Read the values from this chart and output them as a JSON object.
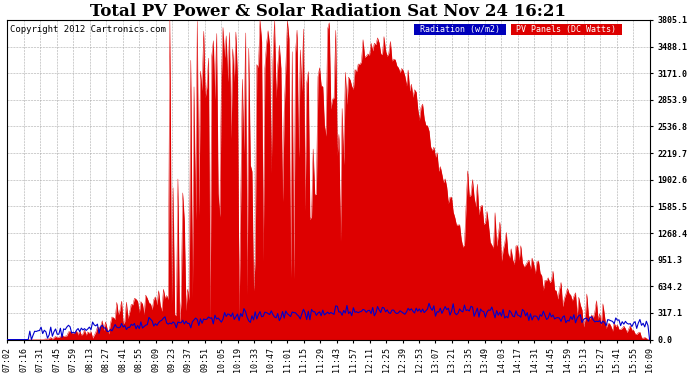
{
  "title": "Total PV Power & Solar Radiation Sat Nov 24 16:21",
  "copyright": "Copyright 2012 Cartronics.com",
  "yticks": [
    0.0,
    317.1,
    634.2,
    951.3,
    1268.4,
    1585.5,
    1902.6,
    2219.7,
    2536.8,
    2853.9,
    3171.0,
    3488.1,
    3805.1
  ],
  "ymax": 3805.1,
  "ymin": 0.0,
  "legend_radiation_label": "Radiation (w/m2)",
  "legend_pv_label": "PV Panels (DC Watts)",
  "legend_radiation_color": "#0000bb",
  "legend_pv_color": "#dd0000",
  "bg_color": "#ffffff",
  "grid_color_x": "#aaaaaa",
  "grid_color_y": "#aaaaaa",
  "title_fontsize": 12,
  "tick_fontsize": 6,
  "copyright_fontsize": 6.5,
  "x_tick_labels": [
    "07:02",
    "07:16",
    "07:31",
    "07:45",
    "07:59",
    "08:13",
    "08:27",
    "08:41",
    "08:55",
    "09:09",
    "09:23",
    "09:37",
    "09:51",
    "10:05",
    "10:19",
    "10:33",
    "10:47",
    "11:01",
    "11:15",
    "11:29",
    "11:43",
    "11:57",
    "12:11",
    "12:25",
    "12:39",
    "12:53",
    "13:07",
    "13:21",
    "13:35",
    "13:49",
    "14:03",
    "14:17",
    "14:31",
    "14:45",
    "14:59",
    "15:13",
    "15:27",
    "15:41",
    "15:55",
    "16:09"
  ],
  "rad_scale_factor": 1.85
}
